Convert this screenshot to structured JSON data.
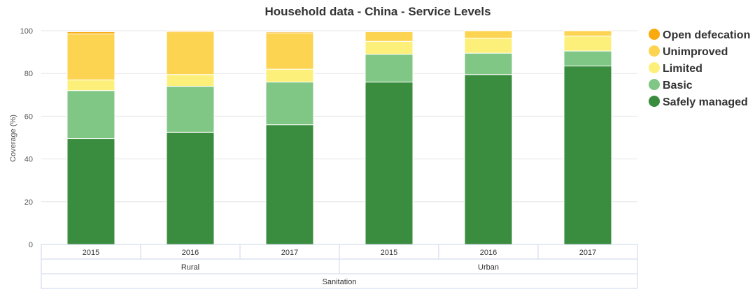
{
  "chart_data": {
    "type": "bar",
    "stacked": true,
    "title": "Household data - China - Service Levels",
    "ylabel": "Coverage (%)",
    "ylim": [
      0,
      100
    ],
    "yticks": [
      0,
      20,
      40,
      60,
      80,
      100
    ],
    "grid": true,
    "legend_position": "right",
    "categories": [
      "2015",
      "2016",
      "2017",
      "2015",
      "2016",
      "2017"
    ],
    "category_groups": [
      {
        "label": "Rural",
        "span": 3
      },
      {
        "label": "Urban",
        "span": 3
      }
    ],
    "super_group": "Sanitation",
    "series": [
      {
        "name": "Safely managed",
        "color": "#3a8d3e",
        "values": [
          49.5,
          52.5,
          56,
          76,
          79.5,
          83.5
        ]
      },
      {
        "name": "Basic",
        "color": "#80c785",
        "values": [
          22.5,
          21.5,
          20,
          13,
          10,
          7
        ]
      },
      {
        "name": "Limited",
        "color": "#fdf07a",
        "values": [
          5,
          5.5,
          6,
          6,
          7,
          7
        ]
      },
      {
        "name": "Unimproved",
        "color": "#fdd352",
        "values": [
          21.5,
          20,
          17,
          4.5,
          3.5,
          2.5
        ]
      },
      {
        "name": "Open defecation",
        "color": "#f8aa0e",
        "values": [
          1,
          0.5,
          0.5,
          0,
          0,
          0
        ]
      }
    ]
  }
}
